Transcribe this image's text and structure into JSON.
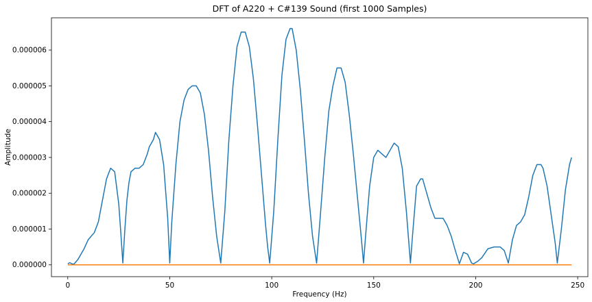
{
  "chart_data": {
    "type": "line",
    "title": "DFT of A220 + C#139 Sound (first 1000 Samples)",
    "xlabel": "Frequency (Hz)",
    "ylabel": "Amplitude",
    "xlim": [
      -8,
      255
    ],
    "ylim": [
      -0.00033,
      6.9e-06
    ],
    "xticks": [
      0,
      50,
      100,
      150,
      200,
      250
    ],
    "xtick_labels": [
      "0",
      "50",
      "100",
      "150",
      "200",
      "250"
    ],
    "yticks": [
      0,
      1e-06,
      2e-06,
      3e-06,
      4e-06,
      5e-06,
      6e-06
    ],
    "ytick_labels": [
      "0.000000",
      "0.000001",
      "0.000002",
      "0.000003",
      "0.000004",
      "0.000005",
      "0.000006"
    ],
    "grid": false,
    "colors": {
      "series_1": "#1f77b4",
      "series_2": "#ff7f0e"
    },
    "series": [
      {
        "color": "#1f77b4",
        "x": [
          0,
          1,
          2,
          3,
          5,
          8,
          10,
          13,
          15,
          17,
          19,
          21,
          23,
          25,
          26,
          27,
          28,
          29,
          30,
          31,
          33,
          35,
          37,
          39,
          40,
          42,
          43,
          45,
          47,
          49,
          50,
          51,
          53,
          55,
          57,
          59,
          61,
          63,
          65,
          67,
          69,
          71,
          73,
          75,
          77,
          79,
          81,
          83,
          85,
          87,
          89,
          91,
          93,
          95,
          97,
          98,
          99,
          101,
          103,
          105,
          107,
          109,
          110,
          112,
          114,
          116,
          118,
          120,
          122,
          124,
          126,
          128,
          130,
          132,
          134,
          136,
          138,
          140,
          142,
          144,
          145,
          146,
          148,
          150,
          152,
          154,
          156,
          158,
          160,
          162,
          164,
          166,
          168,
          169,
          171,
          173,
          174,
          176,
          178,
          180,
          182,
          184,
          186,
          188,
          190,
          192,
          194,
          196,
          198,
          199,
          201,
          203,
          206,
          209,
          212,
          214,
          216,
          218,
          220,
          222,
          224,
          226,
          228,
          230,
          232,
          233,
          235,
          237,
          239,
          240,
          242,
          244,
          246,
          247
        ],
        "y": [
          3e-08,
          6e-08,
          3e-08,
          2e-08,
          1.5e-07,
          4.5e-07,
          7e-07,
          9e-07,
          1.2e-06,
          1.8e-06,
          2.4e-06,
          2.7e-06,
          2.6e-06,
          1.7e-06,
          9e-07,
          5e-08,
          1e-06,
          1.8e-06,
          2.3e-06,
          2.6e-06,
          2.7e-06,
          2.7e-06,
          2.8e-06,
          3.1e-06,
          3.3e-06,
          3.5e-06,
          3.7e-06,
          3.5e-06,
          2.8e-06,
          1.3e-06,
          5e-08,
          1.2e-06,
          2.8e-06,
          4e-06,
          4.6e-06,
          4.9e-06,
          5e-06,
          5e-06,
          4.8e-06,
          4.2e-06,
          3.2e-06,
          1.9e-06,
          8e-07,
          5e-08,
          1.5e-06,
          3.5e-06,
          5e-06,
          6.1e-06,
          6.5e-06,
          6.5e-06,
          6.1e-06,
          5.2e-06,
          3.9e-06,
          2.5e-06,
          1.1e-06,
          5e-07,
          5e-08,
          1.5e-06,
          3.5e-06,
          5.3e-06,
          6.3e-06,
          6.6e-06,
          6.6e-06,
          6e-06,
          4.9e-06,
          3.5e-06,
          2e-06,
          8e-07,
          5e-08,
          1.5e-06,
          3e-06,
          4.3e-06,
          5e-06,
          5.5e-06,
          5.5e-06,
          5.1e-06,
          4.2e-06,
          3.1e-06,
          1.9e-06,
          7e-07,
          5e-08,
          8e-07,
          2.2e-06,
          3e-06,
          3.2e-06,
          3.1e-06,
          3e-06,
          3.2e-06,
          3.4e-06,
          3.3e-06,
          2.7e-06,
          1.5e-06,
          5e-08,
          8e-07,
          2.2e-06,
          2.4e-06,
          2.4e-06,
          2e-06,
          1.6e-06,
          1.3e-06,
          1.3e-06,
          1.3e-06,
          1.1e-06,
          8e-07,
          4e-07,
          3e-08,
          3.5e-07,
          3e-07,
          5e-08,
          3e-08,
          1e-07,
          2e-07,
          4.5e-07,
          5e-07,
          5e-07,
          4e-07,
          5e-08,
          7e-07,
          1.1e-06,
          1.2e-06,
          1.4e-06,
          1.9e-06,
          2.5e-06,
          2.8e-06,
          2.8e-06,
          2.7e-06,
          2.2e-06,
          1.4e-06,
          6e-07,
          5e-08,
          1e-06,
          2.1e-06,
          2.8e-06,
          3e-06
        ]
      },
      {
        "color": "#ff7f0e",
        "x": [
          0,
          247
        ],
        "y": [
          0,
          0
        ]
      }
    ]
  }
}
